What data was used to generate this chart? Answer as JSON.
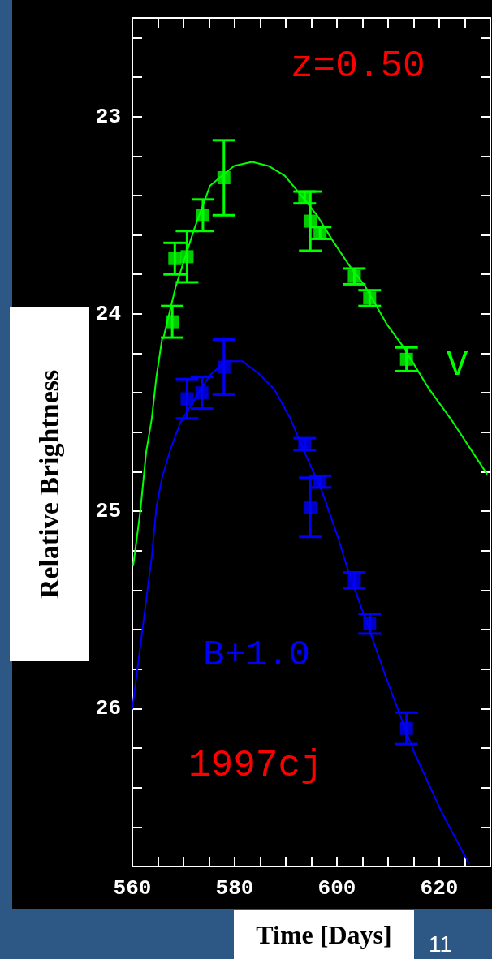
{
  "chart_data": {
    "type": "scatter",
    "xlabel": "Time [Days]",
    "ylabel": "Relative Brightness",
    "annotations": [
      "z=0.50",
      "1997cj",
      "11"
    ],
    "xlim": [
      560,
      630
    ],
    "ylim": [
      26.8,
      22.5
    ],
    "xticks": [
      560,
      {
        "value": 565,
        "label": null
      },
      {
        "value": 570,
        "label": null
      },
      {
        "value": 575,
        "label": null
      },
      580,
      {
        "value": 585,
        "label": null
      },
      {
        "value": 590,
        "label": null
      },
      {
        "value": 595,
        "label": null
      },
      600,
      {
        "value": 605,
        "label": null
      },
      {
        "value": 610,
        "label": null
      },
      {
        "value": 615,
        "label": null
      },
      620,
      {
        "value": 625,
        "label": null
      }
    ],
    "yticks": [
      {
        "value": 22.6,
        "label": null
      },
      {
        "value": 22.8,
        "label": null
      },
      23,
      {
        "value": 23.2,
        "label": null
      },
      {
        "value": 23.4,
        "label": null
      },
      {
        "value": 23.6,
        "label": null
      },
      {
        "value": 23.8,
        "label": null
      },
      24,
      {
        "value": 24.2,
        "label": null
      },
      {
        "value": 24.4,
        "label": null
      },
      {
        "value": 24.6,
        "label": null
      },
      {
        "value": 24.8,
        "label": null
      },
      25,
      {
        "value": 25.2,
        "label": null
      },
      {
        "value": 25.4,
        "label": null
      },
      {
        "value": 25.6,
        "label": null
      },
      {
        "value": 25.8,
        "label": null
      },
      26,
      {
        "value": 26.2,
        "label": null
      },
      {
        "value": 26.4,
        "label": null
      },
      {
        "value": 26.6,
        "label": null
      }
    ],
    "grid": false,
    "legend": false,
    "series": [
      {
        "name": "V",
        "type": "line",
        "color": "#00ff00",
        "marker": "none",
        "line_style": "solid",
        "x": [
          560.2,
          561.6,
          562.7,
          563.8,
          564.7,
          565.8,
          566.1,
          568.5,
          572.1,
          575.2,
          579.9,
          583.4,
          586.6,
          589.8,
          592.4,
          596.1,
          599.2,
          602.3,
          605.5,
          609.7,
          612.8,
          618.0,
          622.2,
          629.3
        ],
        "values": [
          25.27,
          24.99,
          24.7,
          24.53,
          24.32,
          24.13,
          24.12,
          23.86,
          23.57,
          23.35,
          23.25,
          23.23,
          23.25,
          23.3,
          23.38,
          23.5,
          23.63,
          23.75,
          23.86,
          24.05,
          24.16,
          24.38,
          24.53,
          24.81
        ]
      },
      {
        "color": "#00ff00",
        "marker": "square",
        "x": [
          567.8,
          568.3,
          570.7,
          573.8,
          577.9,
          593.7,
          594.8,
          596.7,
          603.4,
          606.4,
          613.6
        ],
        "values": [
          24.04,
          23.72,
          23.71,
          23.5,
          23.31,
          23.41,
          23.53,
          23.59,
          23.81,
          23.92,
          24.23
        ],
        "errors": [
          0.08,
          0.08,
          0.13,
          0.08,
          0.19,
          0.03,
          0.15,
          0.03,
          0.04,
          0.04,
          0.06
        ]
      },
      {
        "name": "B+1.0",
        "type": "line",
        "color": "#0000ff",
        "marker": "none",
        "line_style": "solid",
        "x": [
          560.0,
          563.0,
          563.8,
          564.7,
          565.8,
          567.4,
          569.4,
          572.5,
          575.2,
          578.3,
          581.5,
          584.6,
          587.7,
          590.9,
          594.0,
          597.1,
          600.3,
          602.3,
          606.6,
          609.7,
          614.9,
          620.2,
          625.7
        ],
        "values": [
          26.0,
          25.39,
          25.23,
          24.98,
          24.83,
          24.69,
          24.55,
          24.42,
          24.31,
          24.24,
          24.24,
          24.3,
          24.38,
          24.53,
          24.72,
          24.9,
          25.14,
          25.31,
          25.62,
          25.85,
          26.21,
          26.51,
          26.78
        ]
      },
      {
        "color": "#0000ff",
        "marker": "square",
        "x": [
          570.7,
          573.6,
          577.9,
          593.7,
          594.8,
          596.7,
          603.4,
          606.4,
          613.6
        ],
        "values": [
          24.43,
          24.4,
          24.27,
          24.66,
          24.98,
          24.85,
          25.35,
          25.57,
          26.1
        ],
        "errors": [
          0.1,
          0.08,
          0.14,
          0.03,
          0.15,
          0.03,
          0.04,
          0.05,
          0.08
        ]
      }
    ]
  }
}
